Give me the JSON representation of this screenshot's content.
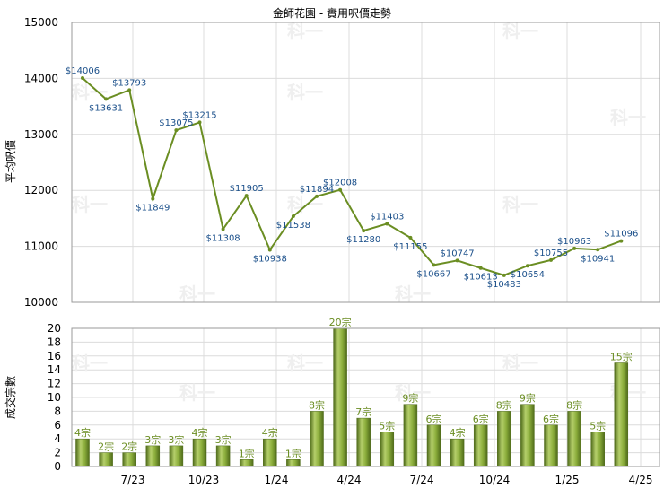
{
  "chart_data": [
    {
      "type": "line",
      "title": "金師花園 - 實用呎價走勢",
      "ylabel": "平均呎價",
      "ylim": [
        10000,
        15000
      ],
      "yticks": [
        10000,
        11000,
        12000,
        13000,
        14000,
        15000
      ],
      "x_tick_labels": [
        "7/23",
        "10/23",
        "1/24",
        "4/24",
        "7/24",
        "10/24",
        "1/25",
        "4/25"
      ],
      "watermark": "科一",
      "line_color": "#6b8e23",
      "label_color": "#1a4f8a",
      "grid": true,
      "values": [
        14006,
        13631,
        13793,
        11849,
        13075,
        13215,
        11308,
        11905,
        10938,
        11538,
        11894,
        12008,
        11280,
        11403,
        11155,
        10667,
        10747,
        10613,
        10483,
        10654,
        10755,
        10963,
        10941,
        11096
      ],
      "labels": [
        "$14006",
        "$13631",
        "$13793",
        "$11849",
        "$13075",
        "$13215",
        "$11308",
        "$11905",
        "$10938",
        "$11538",
        "$11894",
        "$12008",
        "$11280",
        "$11403",
        "$11155",
        "$10667",
        "$10747",
        "$10613",
        "$10483",
        "$10654",
        "$10755",
        "$10963",
        "$10941",
        "$11096"
      ]
    },
    {
      "type": "bar",
      "ylabel": "成交宗數",
      "ylim": [
        0,
        20
      ],
      "yticks": [
        0,
        2,
        4,
        6,
        8,
        10,
        12,
        14,
        16,
        18,
        20
      ],
      "x_tick_labels": [
        "7/23",
        "10/23",
        "1/24",
        "4/24",
        "7/24",
        "10/24",
        "1/25",
        "4/25"
      ],
      "bar_color": "#6b8e23",
      "values": [
        4,
        2,
        2,
        3,
        3,
        4,
        3,
        1,
        4,
        1,
        8,
        20,
        7,
        5,
        9,
        6,
        4,
        6,
        8,
        9,
        6,
        8,
        5,
        15
      ],
      "labels": [
        "4宗",
        "2宗",
        "2宗",
        "3宗",
        "3宗",
        "4宗",
        "3宗",
        "1宗",
        "4宗",
        "1宗",
        "8宗",
        "20宗",
        "7宗",
        "5宗",
        "9宗",
        "6宗",
        "4宗",
        "6宗",
        "8宗",
        "9宗",
        "6宗",
        "8宗",
        "5宗",
        "15宗"
      ]
    }
  ]
}
